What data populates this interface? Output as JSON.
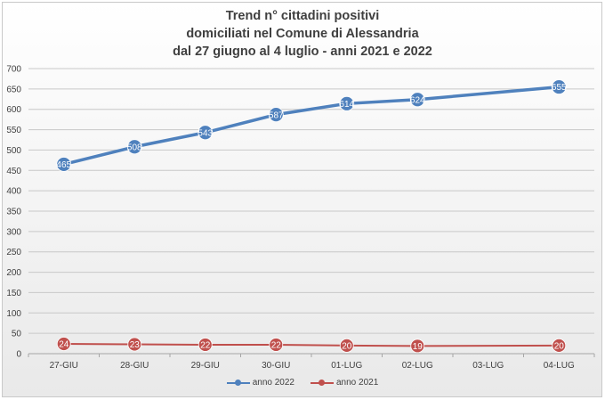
{
  "chart_data": {
    "type": "line",
    "title_lines": [
      "Trend n° cittadini positivi",
      "domiciliati nel Comune di Alessandria",
      "dal 27 giugno al 4 luglio - anni 2021 e 2022"
    ],
    "categories": [
      "27-GIU",
      "28-GIU",
      "29-GIU",
      "30-GIU",
      "01-LUG",
      "02-LUG",
      "03-LUG",
      "04-LUG"
    ],
    "ylim": [
      0,
      700
    ],
    "yticks": [
      0,
      50,
      100,
      150,
      200,
      250,
      300,
      350,
      400,
      450,
      500,
      550,
      600,
      650,
      700
    ],
    "grid": true,
    "legend_position": "bottom",
    "series": [
      {
        "name": "anno 2022",
        "color": "#4f81bd",
        "values": [
          465,
          508,
          543,
          587,
          614,
          624,
          null,
          655
        ],
        "labels": [
          "465",
          "508",
          "543",
          "587",
          "614",
          "624",
          "",
          "655"
        ]
      },
      {
        "name": "anno 2021",
        "color": "#c0504d",
        "values": [
          24,
          23,
          22,
          22,
          20,
          19,
          null,
          20
        ],
        "labels": [
          "24",
          "23",
          "22",
          "22",
          "20",
          "19",
          "",
          "20"
        ]
      }
    ]
  }
}
